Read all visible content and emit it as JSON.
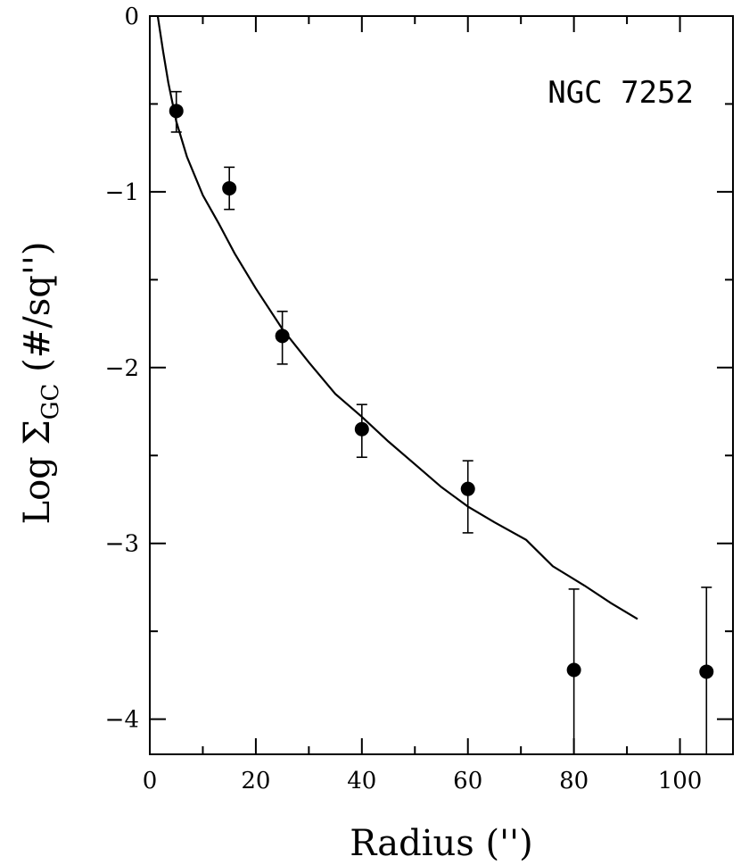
{
  "chart_data": {
    "type": "scatter",
    "annotation": "NGC 7252",
    "xlabel": "Radius ('')",
    "ylabel_prefix": "Log Σ",
    "ylabel_subscript": "GC",
    "ylabel_suffix": " (#/sq'')",
    "xlim": [
      0,
      110
    ],
    "ylim": [
      -4.2,
      0
    ],
    "x_major_ticks": [
      0,
      20,
      40,
      60,
      80,
      100
    ],
    "x_minor_ticks": [
      10,
      30,
      50,
      70,
      90,
      110
    ],
    "y_major_ticks": [
      0,
      -1,
      -2,
      -3,
      -4
    ],
    "y_minor_ticks": [
      -0.5,
      -1.5,
      -2.5,
      -3.5
    ],
    "x_tick_labels": [
      "0",
      "20",
      "40",
      "60",
      "80",
      "100"
    ],
    "y_tick_labels": [
      "0",
      "−1",
      "−2",
      "−3",
      "−4"
    ],
    "grid": false,
    "points": [
      {
        "x": 5,
        "y": -0.54,
        "err_low": 0.12,
        "err_high": 0.11
      },
      {
        "x": 15,
        "y": -0.98,
        "err_low": 0.12,
        "err_high": 0.12
      },
      {
        "x": 25,
        "y": -1.82,
        "err_low": 0.16,
        "err_high": 0.14
      },
      {
        "x": 40,
        "y": -2.35,
        "err_low": 0.16,
        "err_high": 0.14
      },
      {
        "x": 60,
        "y": -2.69,
        "err_low": 0.25,
        "err_high": 0.16
      },
      {
        "x": 80,
        "y": -3.72,
        "err_low": 0.48,
        "err_high": 0.46
      },
      {
        "x": 105,
        "y": -3.73,
        "err_low": 0.47,
        "err_high": 0.48
      }
    ],
    "model_curve": {
      "x": [
        1.5,
        2.5,
        3.5,
        5,
        7,
        10,
        13,
        16,
        20,
        25,
        30,
        35,
        40,
        45,
        50,
        55,
        60,
        65,
        71,
        76,
        82,
        87,
        92
      ],
      "y": [
        0.0,
        -0.2,
        -0.38,
        -0.6,
        -0.8,
        -1.02,
        -1.18,
        -1.35,
        -1.55,
        -1.78,
        -1.97,
        -2.15,
        -2.28,
        -2.42,
        -2.55,
        -2.68,
        -2.79,
        -2.88,
        -2.98,
        -3.13,
        -3.24,
        -3.34,
        -3.43
      ]
    }
  }
}
